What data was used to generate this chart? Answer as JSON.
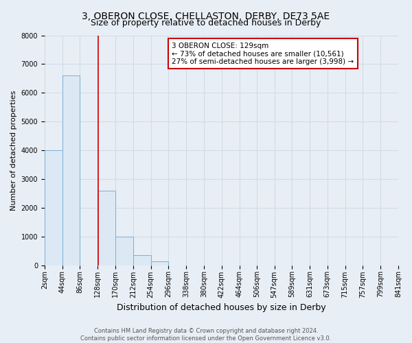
{
  "title": "3, OBERON CLOSE, CHELLASTON, DERBY, DE73 5AE",
  "subtitle": "Size of property relative to detached houses in Derby",
  "xlabel": "Distribution of detached houses by size in Derby",
  "ylabel": "Number of detached properties",
  "bin_edges": [
    2,
    44,
    86,
    128,
    170,
    212,
    254,
    296,
    338,
    380,
    422,
    464,
    506,
    547,
    589,
    631,
    673,
    715,
    757,
    799,
    841
  ],
  "bar_heights": [
    4000,
    6600,
    0,
    2600,
    1000,
    350,
    130,
    0,
    0,
    0,
    0,
    0,
    0,
    0,
    0,
    0,
    0,
    0,
    0,
    0
  ],
  "bar_color": "#dce9f5",
  "bar_edge_color": "#7bafd4",
  "redline_x": 129,
  "ylim": [
    0,
    8000
  ],
  "yticks": [
    0,
    1000,
    2000,
    3000,
    4000,
    5000,
    6000,
    7000,
    8000
  ],
  "xtick_labels": [
    "2sqm",
    "44sqm",
    "86sqm",
    "128sqm",
    "170sqm",
    "212sqm",
    "254sqm",
    "296sqm",
    "338sqm",
    "380sqm",
    "422sqm",
    "464sqm",
    "506sqm",
    "547sqm",
    "589sqm",
    "631sqm",
    "673sqm",
    "715sqm",
    "757sqm",
    "799sqm",
    "841sqm"
  ],
  "annotation_title": "3 OBERON CLOSE: 129sqm",
  "annotation_line1": "← 73% of detached houses are smaller (10,561)",
  "annotation_line2": "27% of semi-detached houses are larger (3,998) →",
  "annotation_box_color": "#ffffff",
  "annotation_border_color": "#cc0000",
  "grid_color": "#d0dce8",
  "background_color": "#e8eef5",
  "footnote1": "Contains HM Land Registry data © Crown copyright and database right 2024.",
  "footnote2": "Contains public sector information licensed under the Open Government Licence v3.0.",
  "title_fontsize": 10,
  "subtitle_fontsize": 9,
  "axis_label_fontsize": 8,
  "tick_fontsize": 7,
  "annotation_fontsize": 7.5,
  "footnote_fontsize": 6
}
